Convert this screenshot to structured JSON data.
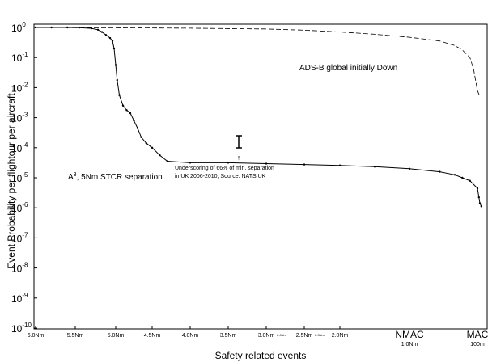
{
  "chart_data": {
    "type": "line",
    "xlabel": "Safety related events",
    "ylabel": "Event Probability per flightour per aircraft→",
    "y_scale": "log",
    "ylim_exponents": [
      -10,
      0
    ],
    "y_ticks": [
      {
        "base": "10",
        "exp": "0"
      },
      {
        "base": "10",
        "exp": "-1"
      },
      {
        "base": "10",
        "exp": "-2"
      },
      {
        "base": "10",
        "exp": "-3"
      },
      {
        "base": "10",
        "exp": "-4"
      },
      {
        "base": "10",
        "exp": "-5"
      },
      {
        "base": "10",
        "exp": "-6"
      },
      {
        "base": "10",
        "exp": "-7"
      },
      {
        "base": "10",
        "exp": "-8"
      },
      {
        "base": "10",
        "exp": "-9"
      },
      {
        "base": "10",
        "exp": "-10"
      }
    ],
    "x_scale": "separation (Nm), decreasing to the right",
    "xlim": [
      6.0,
      0.0
    ],
    "x_ticks": [
      {
        "v": 6.0,
        "label": "6.0Nm",
        "sub": ""
      },
      {
        "v": 5.5,
        "label": "5.5Nm",
        "sub": ""
      },
      {
        "v": 5.0,
        "label": "5.0Nm",
        "sub": ""
      },
      {
        "v": 4.5,
        "label": "4.5Nm",
        "sub": ""
      },
      {
        "v": 4.0,
        "label": "4.0Nm",
        "sub": ""
      },
      {
        "v": 3.5,
        "label": "3.5Nm",
        "sub": ""
      },
      {
        "v": 3.0,
        "label": "3.0Nm",
        "sub": "2.0Nm"
      },
      {
        "v": 2.5,
        "label": "2.5Nm",
        "sub": "2.3Nm"
      },
      {
        "v": 2.0,
        "label": "2.0Nm",
        "sub": ""
      }
    ],
    "x_labels_special": [
      {
        "v": 1.0,
        "label": "NMAC",
        "sub": "1.0Nm"
      },
      {
        "v": 0.1,
        "label": "MAC",
        "sub": "100m"
      }
    ],
    "grid": false,
    "series": [
      {
        "name": "A³, 5Nm STCR separation",
        "style": "solid-with-dots",
        "x": [
          6.0,
          5.8,
          5.6,
          5.45,
          5.3,
          5.22,
          5.17,
          5.12,
          5.07,
          5.04,
          5.02,
          5.0,
          4.98,
          4.95,
          4.9,
          4.85,
          4.8,
          4.75,
          4.7,
          4.65,
          4.58,
          4.5,
          4.4,
          4.3,
          4.0,
          3.5,
          3.0,
          2.5,
          2.0,
          1.5,
          1.0,
          0.6,
          0.4,
          0.3,
          0.2,
          0.1,
          0.07,
          0.05,
          0.02
        ],
        "y_exp": [
          0,
          0,
          0,
          -0.01,
          -0.06,
          -0.15,
          -0.3,
          -0.5,
          -0.7,
          -0.9,
          -1.4,
          -2.5,
          -3.5,
          -4.5,
          -5.2,
          -5.5,
          -5.7,
          -6.2,
          -6.7,
          -7.3,
          -7.7,
          -8.0,
          -8.5,
          -8.9,
          -9.0,
          -9.0,
          -9.06,
          -9.12,
          -9.18,
          -9.26,
          -9.4,
          -9.6,
          -9.8,
          -10.0,
          -10.2,
          -10.7,
          -11.3,
          -11.7,
          -11.9
        ],
        "note": "y_exp values are in half-decades below 10^0 (value = 10^(y_exp/2))"
      },
      {
        "name": "ADS-B global initially Down",
        "style": "dashed",
        "x": [
          6.0,
          5.0,
          4.0,
          3.0,
          2.5,
          2.0,
          1.5,
          1.0,
          0.6,
          0.4,
          0.3,
          0.2,
          0.15,
          0.1,
          0.05
        ],
        "y_exp": [
          0,
          -0.02,
          -0.05,
          -0.1,
          -0.18,
          -0.3,
          -0.45,
          -0.65,
          -0.9,
          -1.2,
          -1.5,
          -2.0,
          -2.8,
          -4.2,
          -4.6
        ],
        "note": "y_exp values are in half-decades below 10^0 (value = 10^(y_exp/2))"
      }
    ],
    "annotations": {
      "adsb_label": "ADS-B global initially Down",
      "a3_label_prefix": "A",
      "a3_label_sup": "3",
      "a3_label_rest": ", 5Nm STCR separation",
      "nats_line1": "Underscoring of 66% of min. separation",
      "nats_line2": "in UK 2006-2010, Source: NATS UK",
      "nats_arrow": "↑"
    }
  }
}
